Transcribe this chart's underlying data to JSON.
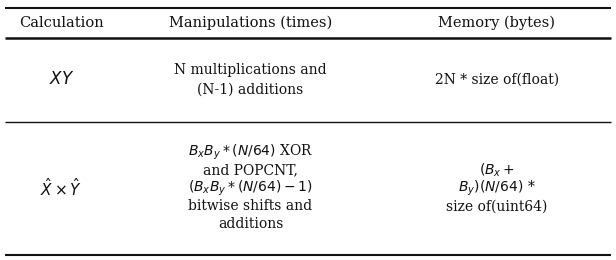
{
  "headers": [
    "Calculation",
    "Manipulations (times)",
    "Memory (bytes)"
  ],
  "row1_col1": "$XY$",
  "row1_col2": "N multiplications and\n(N-1) additions",
  "row1_col3": "2N * size of(float)",
  "row2_col1": "$\\hat{X} \\times \\hat{Y}$",
  "row2_col2_line1": "$B_xB_y * (N/64)$ XOR",
  "row2_col2_line2": "and POPCNT,",
  "row2_col2_line3": "$(B_xB_y * (N/64) - 1)$",
  "row2_col2_line4": "bitwise shifts and",
  "row2_col2_line5": "additions",
  "row2_col3_line1": "$(B_x +$",
  "row2_col3_line2": "$B_y)(N/64)$ *",
  "row2_col3_line3": "size of(uint64)",
  "bg_color": "#ffffff",
  "line_color": "#111111",
  "text_color": "#111111",
  "header_fontsize": 10.5,
  "cell_fontsize": 10,
  "row2_col1_fontsize": 11
}
